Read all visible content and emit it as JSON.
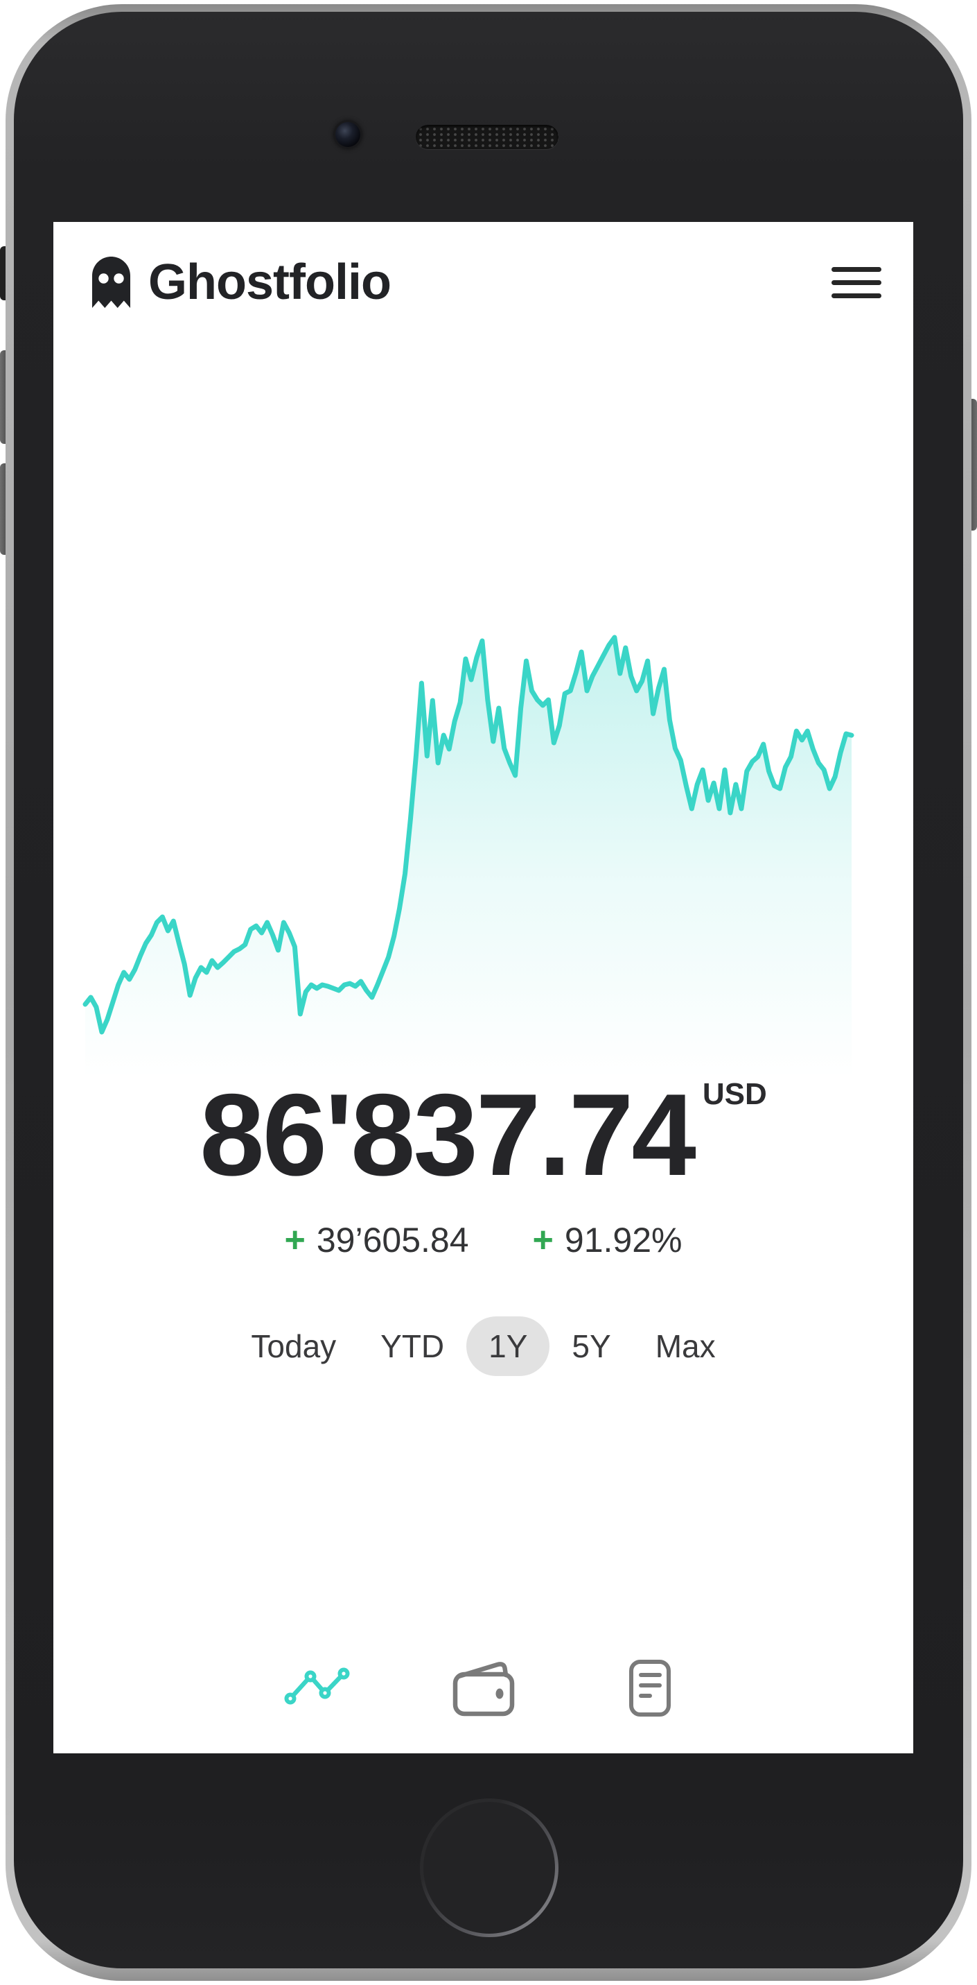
{
  "device": {
    "type": "smartphone mockup",
    "hardware": [
      "mute-switch",
      "volume-up-button",
      "volume-down-button",
      "power-button",
      "front-camera",
      "earpiece-speaker",
      "home-button"
    ]
  },
  "header": {
    "app_name": "Ghostfolio",
    "logo_icon": "ghost-icon",
    "menu_icon": "hamburger-menu-icon"
  },
  "portfolio": {
    "total_value_display": "86'837.74",
    "currency": "USD",
    "change_absolute_sign": "+",
    "change_absolute": "39’605.84",
    "change_percent_sign": "+",
    "change_percent": "91.92%",
    "positive_color": "#31a752"
  },
  "range_selector": {
    "selected": "1Y",
    "options": [
      {
        "label": "Today",
        "selected": false
      },
      {
        "label": "YTD",
        "selected": false
      },
      {
        "label": "1Y",
        "selected": true
      },
      {
        "label": "5Y",
        "selected": false
      },
      {
        "label": "Max",
        "selected": false
      }
    ]
  },
  "bottom_nav": {
    "items": [
      {
        "icon": "analytics-chart-icon",
        "active": true
      },
      {
        "icon": "wallet-icon",
        "active": false
      },
      {
        "icon": "document-list-icon",
        "active": false
      }
    ],
    "active_color": "#3ad5c7",
    "inactive_color": "#7a7a7a"
  },
  "chart_data": {
    "type": "area",
    "title": "",
    "xlabel": "",
    "ylabel": "",
    "period": "1Y",
    "legend": false,
    "grid": false,
    "axes_visible": false,
    "line_color": "#3ad5c7",
    "fill_top": "rgba(61,213,201,0.30)",
    "fill_mid": "rgba(61,213,201,0.10)",
    "fill_bottom": "rgba(61,213,201,0)",
    "start_value": 47231.9,
    "end_value": 86837.74,
    "approx_min": 43148,
    "approx_max": 101243,
    "values": [
      47232,
      48253,
      46824,
      43148,
      44986,
      47538,
      50091,
      51929,
      50908,
      52337,
      54379,
      56217,
      57443,
      59280,
      60097,
      58055,
      59485,
      56217,
      53154,
      48559,
      51112,
      52644,
      51929,
      53665,
      52644,
      53358,
      54175,
      54992,
      55400,
      56013,
      58259,
      58770,
      57749,
      59280,
      57443,
      55196,
      59280,
      57749,
      55706,
      45803,
      49069,
      50091,
      49580,
      50091,
      49886,
      49580,
      49274,
      50091,
      50295,
      49886,
      50601,
      49274,
      48253,
      50091,
      52133,
      54175,
      57238,
      61323,
      66428,
      74596,
      83785,
      94504,
      83784,
      91952,
      82763,
      86847,
      84805,
      88889,
      91645,
      98077,
      95014,
      98281,
      100732,
      92053,
      85928,
      90828,
      84907,
      82763,
      80925,
      90828,
      97771,
      93381,
      92053,
      91237,
      92053,
      85724,
      88276,
      92972,
      93381,
      96036,
      99099,
      93381,
      95525,
      97057,
      98588,
      100120,
      101243,
      95933,
      99712,
      95524,
      93381,
      94810,
      97771,
      90011,
      93790,
      96546,
      89093,
      84907,
      83171,
      79393,
      76024,
      79597,
      81741,
      77250,
      79801,
      76024,
      81741,
      75411,
      79597,
      76024,
      81537,
      82967,
      83681,
      85520,
      81537,
      79393,
      78984,
      82150,
      83681,
      87459,
      86132,
      87459,
      84805,
      82763,
      81741,
      78984,
      80720,
      84295,
      87051,
      86838
    ]
  }
}
